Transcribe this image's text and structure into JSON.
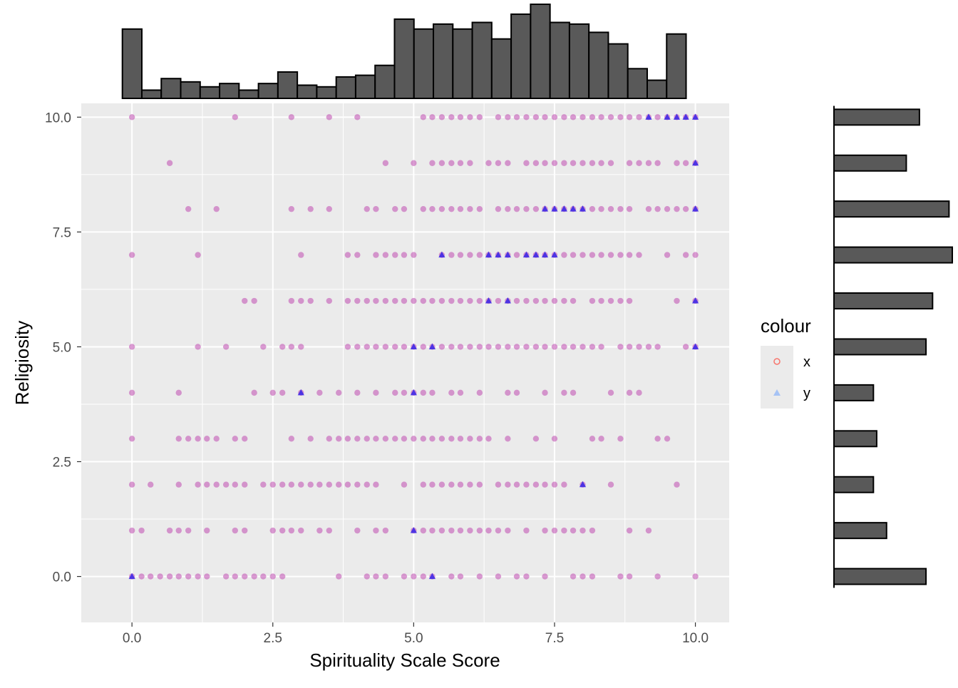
{
  "chart_data": {
    "type": "scatter",
    "title": "",
    "xlabel": "Spirituality Scale Score",
    "ylabel": "Religiosity",
    "xlim": [
      -0.9,
      10.6
    ],
    "ylim": [
      -1.0,
      10.3
    ],
    "x_ticks": [
      {
        "value": 0.0,
        "label": "0.0"
      },
      {
        "value": 2.5,
        "label": "2.5"
      },
      {
        "value": 5.0,
        "label": "5.0"
      },
      {
        "value": 7.5,
        "label": "7.5"
      },
      {
        "value": 10.0,
        "label": "10.0"
      }
    ],
    "y_ticks": [
      {
        "value": 0.0,
        "label": "0.0"
      },
      {
        "value": 2.5,
        "label": "2.5"
      },
      {
        "value": 5.0,
        "label": "5.0"
      },
      {
        "value": 7.5,
        "label": "7.5"
      },
      {
        "value": 10.0,
        "label": "10.0"
      }
    ],
    "grid": true,
    "background": "#EBEBEB",
    "legend": {
      "title": "colour",
      "position": "right",
      "entries": [
        {
          "label": "x",
          "color": "#F8766D",
          "shape": "circle"
        },
        {
          "label": "y",
          "color": "#619CFF",
          "shape": "triangle"
        }
      ]
    },
    "point_colors": {
      "x": "#C04BB0",
      "y": "#2A1CE8"
    },
    "series": [
      {
        "name": "x",
        "rows": [
          {
            "y": 10,
            "x": [
              0,
              1.83,
              2.83,
              3.5,
              4,
              5.17,
              5.33,
              5.5,
              5.67,
              5.83,
              6,
              6.17,
              6.5,
              6.67,
              6.83,
              7,
              7.17,
              7.33,
              7.5,
              7.67,
              7.83,
              8,
              8.17,
              8.33,
              8.5,
              8.67,
              8.83,
              9,
              9.17,
              9.33,
              9.5,
              9.67,
              9.83,
              10
            ]
          },
          {
            "y": 9,
            "x": [
              0.67,
              4.5,
              5,
              5.33,
              5.5,
              5.67,
              5.83,
              6,
              6.33,
              6.5,
              6.67,
              7,
              7.17,
              7.33,
              7.5,
              7.67,
              7.83,
              8,
              8.17,
              8.33,
              8.5,
              8.83,
              9,
              9.17,
              9.33,
              9.67,
              9.83,
              10
            ]
          },
          {
            "y": 8,
            "x": [
              1,
              1.5,
              2.83,
              3.17,
              3.5,
              4.17,
              4.33,
              4.67,
              4.83,
              5.17,
              5.33,
              5.5,
              5.67,
              5.83,
              6,
              6.17,
              6.5,
              6.67,
              6.83,
              7,
              7.17,
              7.33,
              7.5,
              7.67,
              7.83,
              8,
              8.17,
              8.33,
              8.5,
              8.67,
              8.83,
              9.17,
              9.33,
              9.5,
              9.67,
              9.83,
              10
            ]
          },
          {
            "y": 7,
            "x": [
              0,
              1.17,
              3,
              3.83,
              4,
              4.33,
              4.5,
              4.67,
              4.83,
              5,
              5.5,
              5.67,
              5.83,
              6,
              6.17,
              6.33,
              6.5,
              6.67,
              6.83,
              7,
              7.17,
              7.33,
              7.5,
              7.67,
              7.83,
              8,
              8.17,
              8.33,
              8.5,
              8.67,
              8.83,
              9,
              9.5,
              9.83,
              10
            ]
          },
          {
            "y": 6,
            "x": [
              2,
              2.17,
              2.83,
              3,
              3.17,
              3.5,
              3.83,
              4,
              4.17,
              4.33,
              4.5,
              4.67,
              4.83,
              5,
              5.17,
              5.33,
              5.5,
              5.67,
              5.83,
              6,
              6.17,
              6.33,
              6.5,
              6.67,
              6.83,
              7,
              7.17,
              7.33,
              7.5,
              7.67,
              7.83,
              8.17,
              8.33,
              8.5,
              8.67,
              8.83,
              9.67,
              10
            ]
          },
          {
            "y": 5,
            "x": [
              0,
              1.17,
              1.67,
              2.33,
              2.67,
              2.83,
              3,
              3.83,
              4,
              4.17,
              4.33,
              4.5,
              4.67,
              4.83,
              5,
              5.17,
              5.33,
              5.5,
              5.67,
              5.83,
              6,
              6.17,
              6.33,
              6.5,
              6.67,
              6.83,
              7,
              7.17,
              7.33,
              7.5,
              7.67,
              7.83,
              8,
              8.17,
              8.33,
              8.67,
              8.83,
              9,
              9.17,
              9.33,
              9.83,
              10
            ]
          },
          {
            "y": 4,
            "x": [
              0,
              0.83,
              2.17,
              2.5,
              2.67,
              3,
              3.33,
              3.67,
              4,
              4.33,
              4.67,
              4.83,
              5,
              5.17,
              5.33,
              5.67,
              5.83,
              6.17,
              6.67,
              6.83,
              7.33,
              7.67,
              7.83,
              8.5,
              8.83,
              9
            ]
          },
          {
            "y": 3,
            "x": [
              0,
              0.83,
              1,
              1.17,
              1.33,
              1.5,
              1.83,
              2,
              2.83,
              3.17,
              3.5,
              3.67,
              3.83,
              4,
              4.17,
              4.33,
              4.5,
              4.67,
              4.83,
              5,
              5.17,
              5.33,
              5.5,
              5.67,
              5.83,
              6,
              6.17,
              6.33,
              6.67,
              7.17,
              7.5,
              8.17,
              8.33,
              8.67,
              9.33,
              9.5
            ]
          },
          {
            "y": 2,
            "x": [
              0,
              0.33,
              0.83,
              1.17,
              1.33,
              1.5,
              1.67,
              1.83,
              2,
              2.33,
              2.5,
              2.67,
              2.83,
              3,
              3.17,
              3.33,
              3.5,
              3.67,
              3.83,
              4,
              4.17,
              4.33,
              4.83,
              5.17,
              5.33,
              5.5,
              5.67,
              5.83,
              6,
              6.17,
              6.5,
              6.67,
              6.83,
              7,
              7.17,
              7.33,
              7.5,
              7.67,
              8,
              8.5,
              9.67
            ]
          },
          {
            "y": 1,
            "x": [
              0,
              0.17,
              0.67,
              0.83,
              1,
              1.33,
              1.83,
              2,
              2.5,
              2.67,
              2.83,
              3,
              3.33,
              3.5,
              4,
              4.33,
              4.5,
              5,
              5.17,
              5.33,
              5.5,
              5.67,
              5.83,
              6,
              6.17,
              6.33,
              6.5,
              6.67,
              7,
              7.33,
              7.5,
              7.67,
              7.83,
              8,
              8.17,
              8.83,
              9.17
            ]
          },
          {
            "y": 0,
            "x": [
              0,
              0.17,
              0.33,
              0.5,
              0.67,
              0.83,
              1,
              1.17,
              1.33,
              1.67,
              1.83,
              2,
              2.17,
              2.33,
              2.5,
              2.67,
              3.67,
              4.17,
              4.33,
              4.5,
              4.83,
              5,
              5.17,
              5.33,
              5.67,
              5.83,
              6.17,
              6.5,
              6.83,
              7,
              7.33,
              7.83,
              8,
              8.17,
              8.67,
              8.83,
              9.33,
              10
            ]
          }
        ]
      },
      {
        "name": "y",
        "rows": [
          {
            "y": 10,
            "x": [
              9.17,
              9.5,
              9.67,
              9.83,
              10
            ]
          },
          {
            "y": 9,
            "x": [
              10
            ]
          },
          {
            "y": 8,
            "x": [
              7.33,
              7.5,
              7.67,
              7.83,
              8,
              10
            ]
          },
          {
            "y": 7,
            "x": [
              5.5,
              6.33,
              6.5,
              6.67,
              7,
              7.17,
              7.33,
              7.5
            ]
          },
          {
            "y": 6,
            "x": [
              6.33,
              6.67,
              10
            ]
          },
          {
            "y": 5,
            "x": [
              5,
              5.33,
              10
            ]
          },
          {
            "y": 4,
            "x": [
              3,
              5
            ]
          },
          {
            "y": 2,
            "x": [
              8
            ]
          },
          {
            "y": 1,
            "x": [
              5
            ]
          },
          {
            "y": 0,
            "x": [
              0,
              5.33
            ]
          }
        ]
      }
    ],
    "marginal_x_histogram": {
      "bin_start": -0.17,
      "bin_width": 0.345,
      "counts": [
        42,
        5,
        12,
        10,
        7,
        9,
        5,
        9,
        16,
        8,
        7,
        13,
        14,
        20,
        48,
        42,
        45,
        42,
        46,
        36,
        51,
        57,
        46,
        45,
        40,
        33,
        18,
        11,
        39
      ]
    },
    "marginal_y_histogram": {
      "bins": [
        {
          "y": 0,
          "count": 28
        },
        {
          "y": 1,
          "count": 16
        },
        {
          "y": 2,
          "count": 12
        },
        {
          "y": 3,
          "count": 13
        },
        {
          "y": 4,
          "count": 12
        },
        {
          "y": 5,
          "count": 28
        },
        {
          "y": 6,
          "count": 30
        },
        {
          "y": 7,
          "count": 36
        },
        {
          "y": 8,
          "count": 35
        },
        {
          "y": 9,
          "count": 22
        },
        {
          "y": 10,
          "count": 26
        }
      ]
    }
  }
}
